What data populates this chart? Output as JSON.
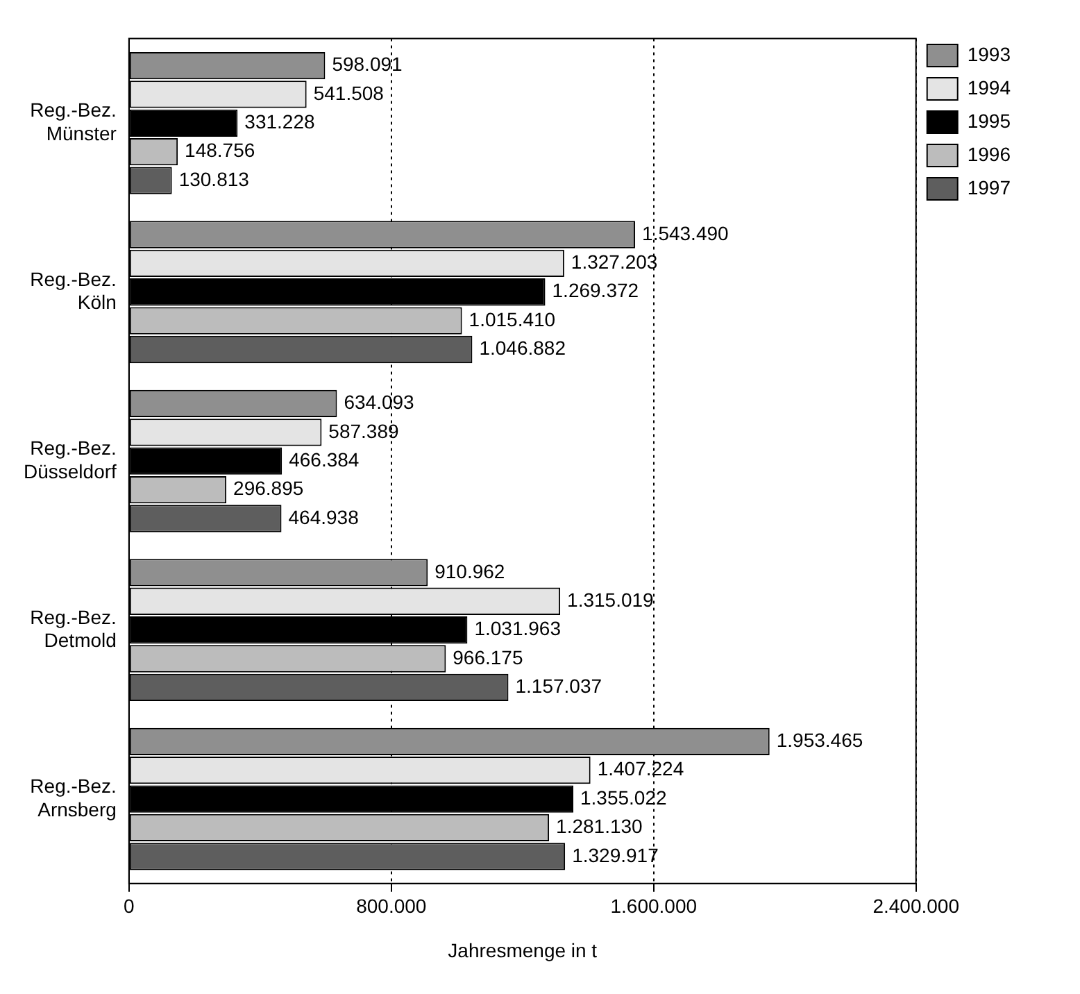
{
  "chart_data": {
    "type": "bar",
    "orientation": "horizontal",
    "xlabel": "Jahresmenge in t",
    "categories": [
      "Reg.-Bez. Münster",
      "Reg.-Bez. Köln",
      "Reg.-Bez. Düsseldorf",
      "Reg.-Bez. Detmold",
      "Reg.-Bez. Arnsberg"
    ],
    "series": [
      {
        "name": "1993",
        "color": "#8f8f8f",
        "values": [
          598091,
          1543490,
          634093,
          910962,
          1953465
        ],
        "value_labels": [
          "598.091",
          "1.543.490",
          "634.093",
          "910.962",
          "1.953.465"
        ]
      },
      {
        "name": "1994",
        "color": "#e4e4e4",
        "values": [
          541508,
          1327203,
          587389,
          1315019,
          1407224
        ],
        "value_labels": [
          "541.508",
          "1.327.203",
          "587.389",
          "1.315.019",
          "1.407.224"
        ]
      },
      {
        "name": "1995",
        "color": "#000000",
        "values": [
          331228,
          1269372,
          466384,
          1031963,
          1355022
        ],
        "value_labels": [
          "331.228",
          "1.269.372",
          "466.384",
          "1.031.963",
          "1.355.022"
        ]
      },
      {
        "name": "1996",
        "color": "#bcbcbc",
        "values": [
          148756,
          1015410,
          296895,
          966175,
          1281130
        ],
        "value_labels": [
          "148.756",
          "1.015.410",
          "296.895",
          "966.175",
          "1.281.130"
        ]
      },
      {
        "name": "1997",
        "color": "#5e5e5e",
        "values": [
          130813,
          1046882,
          464938,
          1157037,
          1329917
        ],
        "value_labels": [
          "130.813",
          "1.046.882",
          "464.938",
          "1.157.037",
          "1.329.917"
        ]
      }
    ],
    "xlim": [
      0,
      2400000
    ],
    "xticks": [
      {
        "value": 0,
        "label": "0"
      },
      {
        "value": 800000,
        "label": "800.000"
      },
      {
        "value": 1600000,
        "label": "1.600.000"
      },
      {
        "value": 2400000,
        "label": "2.400.000"
      }
    ],
    "grid": "x",
    "line_style": "dotted",
    "legend": "top right"
  }
}
